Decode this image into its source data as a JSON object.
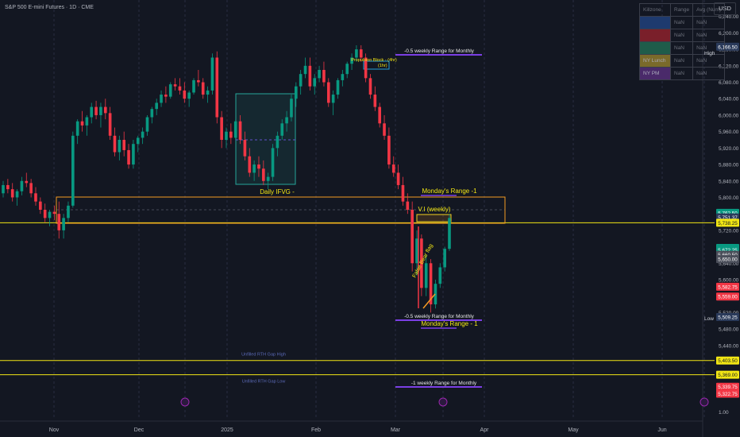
{
  "header": {
    "title": "S&P 500 E-mini Futures · 1D · CME",
    "currency": "USD"
  },
  "legend_table": {
    "headers": [
      "Killzone",
      "Range",
      "Avg (Num)"
    ],
    "rows": [
      {
        "name": "",
        "range": "NaN",
        "avg": "NaN",
        "color": "#1e3a6e"
      },
      {
        "name": "",
        "range": "NaN",
        "avg": "NaN",
        "color": "#7a1f2a"
      },
      {
        "name": "",
        "range": "NaN",
        "avg": "NaN",
        "color": "#1f5c4a"
      },
      {
        "name": "NY Lunch",
        "range": "NaN",
        "avg": "NaN",
        "color": "#7a6a2a"
      },
      {
        "name": "NY PM",
        "range": "NaN",
        "avg": "NaN",
        "color": "#4a2a6a"
      }
    ]
  },
  "tags": {
    "high": "High",
    "low": "Low"
  },
  "chart_data": {
    "type": "candlestick",
    "title": "S&P 500 E-mini Futures · 1D · CME",
    "x_tick_labels": [
      "Nov",
      "Dec",
      "2025",
      "Feb",
      "Mar",
      "Apr",
      "May",
      "Jun"
    ],
    "y_ticks": [
      5440,
      5480,
      5520,
      5560,
      5600,
      5640,
      5680,
      5720,
      5760,
      5800,
      5840,
      5880,
      5920,
      5960,
      6000,
      6040,
      6080,
      6120,
      6160,
      6200,
      6240
    ],
    "y_tick_labels": [
      "5,440.00",
      "5,480.00",
      "5,520.00",
      "5,560.00",
      "5,600.00",
      "5,640.00",
      "5,680.00",
      "5,720.00",
      "5,760.00",
      "5,800.00",
      "5,840.00",
      "5,880.00",
      "5,920.00",
      "5,960.00",
      "6,000.00",
      "6,040.00",
      "6,080.00",
      "6,120.00",
      "6,160.00",
      "6,200.00",
      "6,240.00"
    ],
    "y_range": [
      5260,
      6280
    ],
    "bottom_axis_label": "1.00",
    "price_labels": [
      {
        "value": 6166.5,
        "text": "6,166.50",
        "color": "#2a3a5a"
      },
      {
        "value": 5762.5,
        "text": "5,762.50",
        "color": "#089981"
      },
      {
        "value": 5751.37,
        "text": "5,751.37",
        "color": "#2a3a5a"
      },
      {
        "value": 5738.25,
        "text": "5,738.25",
        "color": "#f2e614"
      },
      {
        "value": 5677.25,
        "text": "5,677.25",
        "color": "#089981"
      },
      {
        "value": 5672.25,
        "text": "5,672.25",
        "color": "#089981"
      },
      {
        "value": 5660.5,
        "text": "5,660.50",
        "color": "#4a4e5a"
      },
      {
        "value": 5650.0,
        "text": "5,650.00",
        "color": "#4a4e5a"
      },
      {
        "value": 5582.75,
        "text": "5,582.75",
        "color": "#f23645"
      },
      {
        "value": 5559.0,
        "text": "5,559.00",
        "color": "#f23645"
      },
      {
        "value": 5509.25,
        "text": "5,509.25",
        "color": "#2a3a5a"
      },
      {
        "value": 5403.5,
        "text": "5,403.50",
        "color": "#f2e614"
      },
      {
        "value": 5369.0,
        "text": "5,369.00",
        "color": "#f2e614"
      },
      {
        "value": 5339.75,
        "text": "5,339.75",
        "color": "#f23645"
      },
      {
        "value": 5322.75,
        "text": "5,322.75",
        "color": "#f23645"
      }
    ],
    "horizontal_levels": [
      {
        "value": 5738.25,
        "color": "#f2e614"
      },
      {
        "value": 5403.5,
        "color": "#f2e614",
        "label": "Unfilled RTH Gap High"
      },
      {
        "value": 5369.0,
        "color": "#f2e614",
        "label": "Unfilled RTH Gap Low"
      }
    ],
    "annotations": [
      {
        "text": "-0.5 weekly Range for Monthly"
      },
      {
        "text": "Daily IFVG -"
      },
      {
        "text": "Monday's Range -1"
      },
      {
        "text": "V.I  (weekly)"
      },
      {
        "text": "False Bear flag"
      },
      {
        "text": "-0.5 weekly Range for Monthly"
      },
      {
        "text": "Monday's Range - 1"
      },
      {
        "text": "-1 weekly Range for Monthly"
      },
      {
        "text": "Propulsion Block - (4hr)"
      },
      {
        "text": "(1hr)"
      }
    ],
    "ohlc": [
      [
        5810,
        5840,
        5800,
        5830
      ],
      [
        5830,
        5845,
        5810,
        5820
      ],
      [
        5820,
        5835,
        5790,
        5800
      ],
      [
        5800,
        5820,
        5780,
        5815
      ],
      [
        5815,
        5850,
        5805,
        5840
      ],
      [
        5840,
        5860,
        5825,
        5835
      ],
      [
        5835,
        5845,
        5800,
        5810
      ],
      [
        5810,
        5825,
        5780,
        5790
      ],
      [
        5790,
        5800,
        5760,
        5770
      ],
      [
        5770,
        5785,
        5740,
        5750
      ],
      [
        5750,
        5770,
        5730,
        5765
      ],
      [
        5765,
        5780,
        5745,
        5760
      ],
      [
        5760,
        5790,
        5700,
        5720
      ],
      [
        5720,
        5760,
        5700,
        5750
      ],
      [
        5750,
        5790,
        5740,
        5780
      ],
      [
        5780,
        5960,
        5775,
        5950
      ],
      [
        5950,
        5990,
        5930,
        5985
      ],
      [
        5985,
        6010,
        5960,
        5975
      ],
      [
        5975,
        6000,
        5950,
        5995
      ],
      [
        5995,
        6030,
        5980,
        6020
      ],
      [
        6020,
        6035,
        5990,
        6000
      ],
      [
        6000,
        6030,
        5970,
        6020
      ],
      [
        6020,
        6040,
        5990,
        6005
      ],
      [
        6005,
        6020,
        5940,
        5950
      ],
      [
        5950,
        5970,
        5900,
        5910
      ],
      [
        5910,
        5950,
        5890,
        5940
      ],
      [
        5940,
        5960,
        5900,
        5915
      ],
      [
        5915,
        5930,
        5870,
        5880
      ],
      [
        5880,
        5940,
        5870,
        5930
      ],
      [
        5930,
        5950,
        5910,
        5945
      ],
      [
        5945,
        5970,
        5930,
        5960
      ],
      [
        5960,
        6000,
        5950,
        5995
      ],
      [
        5995,
        6020,
        5980,
        6015
      ],
      [
        6015,
        6040,
        6000,
        6030
      ],
      [
        6030,
        6060,
        6020,
        6050
      ],
      [
        6050,
        6070,
        6030,
        6045
      ],
      [
        6045,
        6080,
        6040,
        6075
      ],
      [
        6075,
        6090,
        6060,
        6070
      ],
      [
        6070,
        6090,
        6050,
        6060
      ],
      [
        6060,
        6080,
        6030,
        6040
      ],
      [
        6040,
        6060,
        6020,
        6055
      ],
      [
        6055,
        6090,
        6050,
        6085
      ],
      [
        6085,
        6110,
        6070,
        6080
      ],
      [
        6080,
        6090,
        6040,
        6050
      ],
      [
        6050,
        6070,
        6030,
        6060
      ],
      [
        6060,
        6150,
        6050,
        6140
      ],
      [
        6140,
        6155,
        5980,
        5995
      ],
      [
        5995,
        6010,
        5920,
        5940
      ],
      [
        5940,
        5970,
        5920,
        5960
      ],
      [
        5960,
        5980,
        5930,
        5945
      ],
      [
        5945,
        5990,
        5940,
        5985
      ],
      [
        5985,
        6000,
        5930,
        5940
      ],
      [
        5940,
        5960,
        5890,
        5900
      ],
      [
        5900,
        5920,
        5850,
        5860
      ],
      [
        5860,
        5890,
        5840,
        5880
      ],
      [
        5880,
        5900,
        5850,
        5870
      ],
      [
        5870,
        5890,
        5830,
        5840
      ],
      [
        5840,
        5860,
        5820,
        5850
      ],
      [
        5850,
        5930,
        5840,
        5920
      ],
      [
        5920,
        5960,
        5900,
        5950
      ],
      [
        5950,
        5990,
        5940,
        5980
      ],
      [
        5980,
        6010,
        5960,
        5995
      ],
      [
        5995,
        6050,
        5985,
        6040
      ],
      [
        6040,
        6080,
        6020,
        6070
      ],
      [
        6070,
        6110,
        6050,
        6100
      ],
      [
        6100,
        6140,
        6090,
        6120
      ],
      [
        6120,
        6140,
        6060,
        6070
      ],
      [
        6070,
        6100,
        6050,
        6090
      ],
      [
        6090,
        6120,
        6080,
        6110
      ],
      [
        6110,
        6130,
        6070,
        6080
      ],
      [
        6080,
        6090,
        6020,
        6030
      ],
      [
        6030,
        6060,
        6000,
        6050
      ],
      [
        6050,
        6090,
        6040,
        6085
      ],
      [
        6085,
        6110,
        6070,
        6100
      ],
      [
        6100,
        6130,
        6090,
        6125
      ],
      [
        6125,
        6150,
        6110,
        6140
      ],
      [
        6140,
        6170,
        6130,
        6160
      ],
      [
        6160,
        6170,
        6130,
        6140
      ],
      [
        6140,
        6150,
        6080,
        6090
      ],
      [
        6090,
        6100,
        6040,
        6050
      ],
      [
        6050,
        6070,
        6010,
        6020
      ],
      [
        6020,
        6030,
        5970,
        5980
      ],
      [
        5980,
        6000,
        5940,
        5950
      ],
      [
        5950,
        5970,
        5870,
        5880
      ],
      [
        5880,
        5900,
        5850,
        5860
      ],
      [
        5860,
        5880,
        5820,
        5830
      ],
      [
        5830,
        5850,
        5780,
        5790
      ],
      [
        5790,
        5810,
        5760,
        5770
      ],
      [
        5770,
        5790,
        5620,
        5640
      ],
      [
        5640,
        5720,
        5610,
        5700
      ],
      [
        5700,
        5710,
        5560,
        5580
      ],
      [
        5580,
        5660,
        5560,
        5640
      ],
      [
        5640,
        5650,
        5520,
        5540
      ],
      [
        5540,
        5600,
        5530,
        5590
      ],
      [
        5590,
        5640,
        5580,
        5630
      ],
      [
        5630,
        5680,
        5620,
        5675
      ],
      [
        5675,
        5760,
        5670,
        5750
      ]
    ]
  }
}
